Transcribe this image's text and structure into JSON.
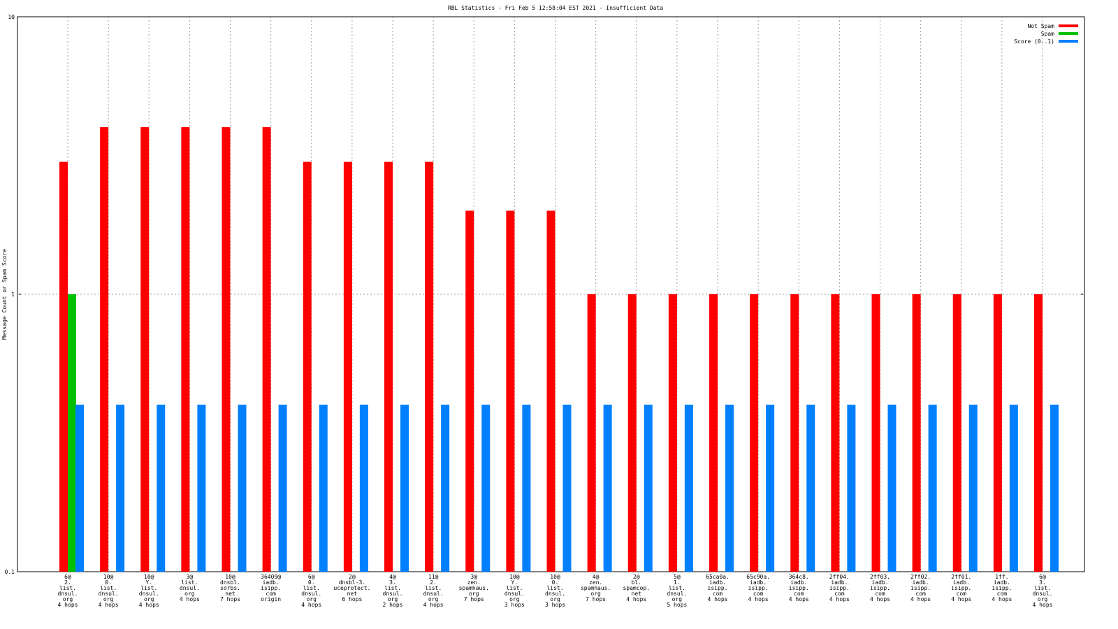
{
  "chart_data": {
    "type": "bar",
    "title": "RBL Statistics - Fri Feb  5 12:58:04 EST 2021 - Insufficient Data",
    "y_label": "Message Count or Spam Score",
    "log_scale": true,
    "grid": true,
    "legend": "top-right",
    "ylim": [
      0.1,
      10
    ],
    "yticks": [
      0.1,
      1,
      10
    ],
    "categories": [
      [
        "6@",
        "2.",
        "list.",
        "dnsul.",
        "org",
        "4 hops"
      ],
      [
        "10@",
        "0.",
        "list.",
        "dnsul.",
        "org",
        "4 hops"
      ],
      [
        "10@",
        "Y.",
        "list.",
        "dnsul.",
        "org",
        "4 hops"
      ],
      [
        "3@",
        "list.",
        "dnsul.",
        "org",
        "4 hops"
      ],
      [
        "10@",
        "dnsbl.",
        "sorbs.",
        "net",
        "7 hops"
      ],
      [
        "36409@",
        "iadb.",
        "isipp.",
        "com",
        "origin"
      ],
      [
        "6@",
        "0.",
        "list.",
        "dnsul.",
        "org",
        "4 hops"
      ],
      [
        "2@",
        "dnsbl-3.",
        "uceprotect.",
        "net",
        "6 hops"
      ],
      [
        "4@",
        "3.",
        "list.",
        "dnsul.",
        "org",
        "2 hops"
      ],
      [
        "11@",
        "2.",
        "list.",
        "dnsul.",
        "org",
        "4 hops"
      ],
      [
        "3@",
        "zen.",
        "spamhaus.",
        "org",
        "7 hops"
      ],
      [
        "10@",
        "Y.",
        "list.",
        "dnsul.",
        "org",
        "3 hops"
      ],
      [
        "10@",
        "0.",
        "list.",
        "dnsul.",
        "org",
        "3 hops"
      ],
      [
        "4@",
        "zen.",
        "spamhaus.",
        "org",
        "7 hops"
      ],
      [
        "2@",
        "bl.",
        "spamcop.",
        "net",
        "4 hops"
      ],
      [
        "5@",
        "1.",
        "list.",
        "dnsul.",
        "org",
        "5 hops"
      ],
      [
        "65ca0a.",
        "iadb.",
        "isipp.",
        "com",
        "4 hops"
      ],
      [
        "65c90a.",
        "iadb.",
        "isipp.",
        "com",
        "4 hops"
      ],
      [
        "364c8.",
        "iadb.",
        "isipp.",
        "com",
        "4 hops"
      ],
      [
        "2ff04.",
        "iadb.",
        "isipp.",
        "com",
        "4 hops"
      ],
      [
        "2ff03.",
        "iadb.",
        "isipp.",
        "com",
        "4 hops"
      ],
      [
        "2ff02.",
        "iadb.",
        "isipp.",
        "com",
        "4 hops"
      ],
      [
        "2ff01.",
        "iadb.",
        "isipp.",
        "com",
        "4 hops"
      ],
      [
        "1ff.",
        "iadb.",
        "isipp.",
        "com",
        "4 hops"
      ],
      [
        "6@",
        "3.",
        "list.",
        "dnsul.",
        "org",
        "4 hops"
      ]
    ],
    "series": [
      {
        "name": "Not Spam",
        "color": "#ff0000",
        "values": [
          3,
          4,
          4,
          4,
          4,
          4,
          3,
          3,
          3,
          3,
          2,
          2,
          2,
          1,
          1,
          1,
          1,
          1,
          1,
          1,
          1,
          1,
          1,
          1,
          1
        ]
      },
      {
        "name": "Spam",
        "color": "#00c000",
        "values": [
          1,
          null,
          null,
          null,
          null,
          null,
          null,
          null,
          null,
          null,
          null,
          null,
          null,
          null,
          null,
          null,
          null,
          null,
          null,
          null,
          null,
          null,
          null,
          null,
          null
        ]
      },
      {
        "name": "Score (0..1)",
        "color": "#0080ff",
        "values": [
          0.4,
          0.4,
          0.4,
          0.4,
          0.4,
          0.4,
          0.4,
          0.4,
          0.4,
          0.4,
          0.4,
          0.4,
          0.4,
          0.4,
          0.4,
          0.4,
          0.4,
          0.4,
          0.4,
          0.4,
          0.4,
          0.4,
          0.4,
          0.4,
          0.4
        ]
      }
    ]
  }
}
